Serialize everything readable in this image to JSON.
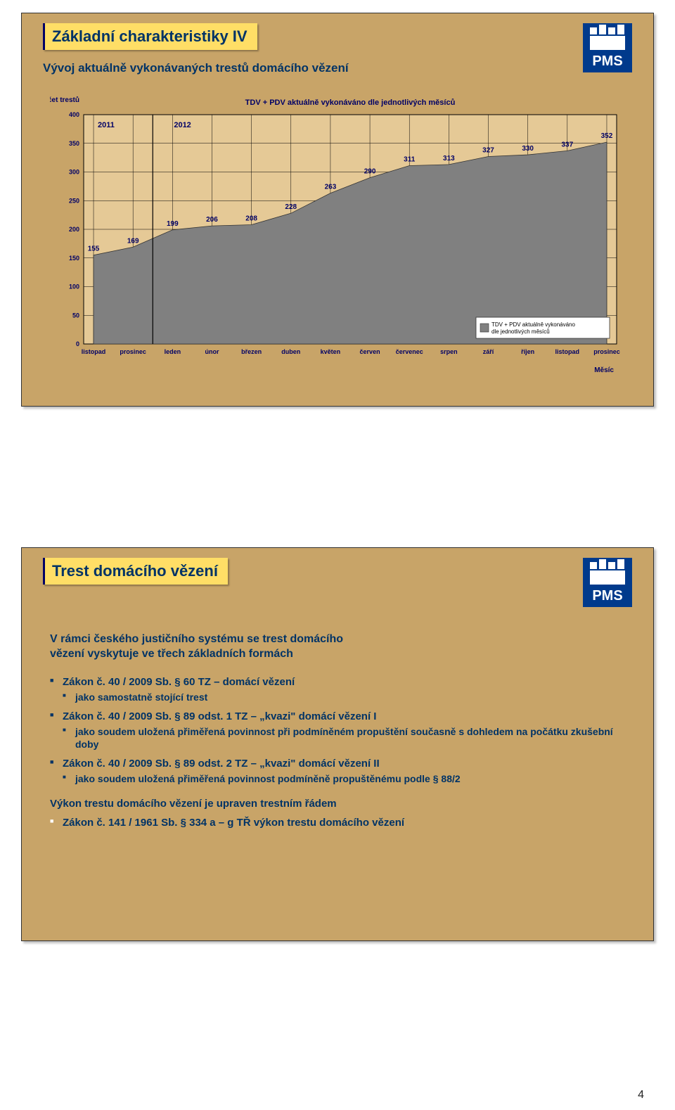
{
  "page_number": "4",
  "logo": {
    "bg": "#003a8c",
    "fg": "#ffffff",
    "text": "PMS"
  },
  "slide1": {
    "title": "Základní charakteristiky IV",
    "subtitle": "Vývoj aktuálně vykonávaných trestů domácího vězení",
    "chart": {
      "type": "area",
      "background_color": "#e5c996",
      "fill_color": "#808080",
      "grid_color": "#000000",
      "axis_color": "#000000",
      "font_family": "Arial",
      "title": "TDV + PDV aktuálně vykonáváno dle jednotlivých měsíců",
      "title_fontsize": 11,
      "title_color": "#000066",
      "y_label": "Počet trestů",
      "y_label_fontsize": 10,
      "y_label_color": "#000066",
      "x_label_right": "Měsíc",
      "ylim": [
        0,
        400
      ],
      "ytick_step": 50,
      "yticks": [
        0,
        50,
        100,
        150,
        200,
        250,
        300,
        350,
        400
      ],
      "year_labels": [
        "2011",
        "2012"
      ],
      "divider_after_index": 1,
      "categories": [
        "listopad",
        "prosinec",
        "leden",
        "únor",
        "březen",
        "duben",
        "květen",
        "červen",
        "červenec",
        "srpen",
        "září",
        "říjen",
        "listopad",
        "prosinec"
      ],
      "values": [
        155,
        169,
        199,
        206,
        208,
        228,
        263,
        290,
        311,
        313,
        327,
        330,
        337,
        352
      ],
      "legend_text": "TDV + PDV aktuálně vykonáváno dle jednotlivých měsíců",
      "legend_fontsize": 8,
      "data_label_fontsize": 10,
      "data_label_color": "#000066",
      "tick_label_fontsize": 9,
      "tick_label_color": "#000066"
    }
  },
  "slide2": {
    "title": "Trest domácího vězení",
    "lead_line1": "V rámci českého justičního systému se trest domácího",
    "lead_line2": "vězení vyskytuje ve třech základních formách",
    "items": [
      {
        "main": "Zákon č. 40 / 2009 Sb. § 60 TZ – domácí vězení",
        "sub": "jako samostatně stojící trest"
      },
      {
        "main": "Zákon č. 40 / 2009 Sb. § 89 odst. 1 TZ – „kvazi\" domácí vězení I",
        "sub": "jako soudem uložená přiměřená povinnost při podmíněném propuštění současně s dohledem na počátku zkušební doby"
      },
      {
        "main": "Zákon č. 40 / 2009 Sb. § 89 odst. 2 TZ – „kvazi\" domácí vězení II",
        "sub": "jako soudem uložená přiměřená povinnost podmíněně propuštěnému podle § 88/2"
      }
    ],
    "footer_label": "Výkon trestu domácího vězení je upraven trestním řádem",
    "footer_item": "Zákon č. 141 / 1961 Sb. § 334 a – g TŘ výkon trestu domácího vězení"
  }
}
